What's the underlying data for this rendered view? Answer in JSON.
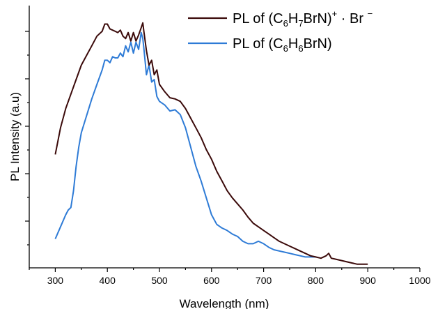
{
  "chart_data": {
    "type": "line",
    "title": "",
    "xlabel": "Wavelength (nm)",
    "ylabel": "PL Intensity (a.u)",
    "xlim": [
      250,
      1000
    ],
    "ylim": [
      0,
      1
    ],
    "x_ticks": [
      "300",
      "400",
      "500",
      "600",
      "700",
      "800",
      "900",
      "1000"
    ],
    "y_tick_labels_shown": false,
    "grid": false,
    "legend_position": "top-right",
    "series": [
      {
        "name_parts": {
          "pre": "PL of (C",
          "s1": "6",
          "m1": "H",
          "s2": "7",
          "m2": "BrN)",
          "sup1": "+",
          "mid": " · Br ",
          "sup2": "−"
        },
        "color": "#3b0a0a",
        "x": [
          300,
          310,
          320,
          330,
          340,
          350,
          360,
          370,
          380,
          390,
          395,
          400,
          405,
          410,
          415,
          420,
          425,
          430,
          435,
          440,
          445,
          450,
          455,
          460,
          465,
          468,
          470,
          475,
          480,
          485,
          490,
          495,
          500,
          510,
          520,
          530,
          540,
          550,
          560,
          570,
          580,
          590,
          600,
          610,
          620,
          630,
          640,
          650,
          660,
          670,
          680,
          690,
          700,
          710,
          720,
          730,
          740,
          750,
          760,
          770,
          780,
          790,
          800,
          810,
          820,
          825,
          830,
          840,
          850,
          860,
          870,
          880,
          890,
          900
        ],
        "y": [
          0.47,
          0.58,
          0.66,
          0.72,
          0.78,
          0.84,
          0.88,
          0.92,
          0.96,
          0.98,
          1.01,
          1.01,
          0.99,
          0.985,
          0.98,
          0.975,
          0.985,
          0.96,
          0.95,
          0.975,
          0.94,
          0.975,
          0.94,
          0.965,
          0.995,
          1.015,
          0.98,
          0.9,
          0.84,
          0.86,
          0.8,
          0.82,
          0.76,
          0.73,
          0.705,
          0.7,
          0.69,
          0.66,
          0.62,
          0.58,
          0.54,
          0.49,
          0.45,
          0.4,
          0.36,
          0.32,
          0.29,
          0.265,
          0.24,
          0.21,
          0.185,
          0.17,
          0.155,
          0.14,
          0.125,
          0.11,
          0.1,
          0.09,
          0.08,
          0.07,
          0.06,
          0.05,
          0.045,
          0.04,
          0.05,
          0.06,
          0.04,
          0.035,
          0.03,
          0.025,
          0.02,
          0.015,
          0.015,
          0.015
        ]
      },
      {
        "name_parts": {
          "pre": "PL of (C",
          "s1": "6",
          "m1": "H",
          "s2": "6",
          "m2": "BrN)",
          "sup1": "",
          "mid": "",
          "sup2": ""
        },
        "color": "#2e7bd6",
        "x": [
          300,
          310,
          320,
          325,
          330,
          335,
          340,
          345,
          350,
          360,
          370,
          380,
          390,
          395,
          400,
          405,
          410,
          415,
          420,
          425,
          430,
          435,
          440,
          445,
          450,
          455,
          460,
          465,
          468,
          470,
          475,
          480,
          485,
          490,
          495,
          500,
          510,
          520,
          530,
          540,
          550,
          560,
          570,
          580,
          590,
          600,
          610,
          620,
          630,
          640,
          650,
          660,
          670,
          680,
          690,
          700,
          710,
          720,
          730,
          740,
          750,
          760,
          770,
          780,
          790,
          800
        ],
        "y": [
          0.12,
          0.17,
          0.22,
          0.24,
          0.25,
          0.32,
          0.42,
          0.5,
          0.56,
          0.63,
          0.7,
          0.76,
          0.82,
          0.86,
          0.86,
          0.85,
          0.875,
          0.87,
          0.87,
          0.89,
          0.875,
          0.92,
          0.895,
          0.935,
          0.89,
          0.935,
          0.905,
          0.975,
          0.95,
          0.91,
          0.8,
          0.84,
          0.77,
          0.78,
          0.71,
          0.69,
          0.675,
          0.65,
          0.655,
          0.635,
          0.58,
          0.5,
          0.42,
          0.36,
          0.29,
          0.22,
          0.18,
          0.165,
          0.155,
          0.14,
          0.13,
          0.11,
          0.1,
          0.1,
          0.11,
          0.1,
          0.085,
          0.075,
          0.07,
          0.065,
          0.06,
          0.055,
          0.05,
          0.045,
          0.045,
          0.045
        ]
      }
    ]
  }
}
